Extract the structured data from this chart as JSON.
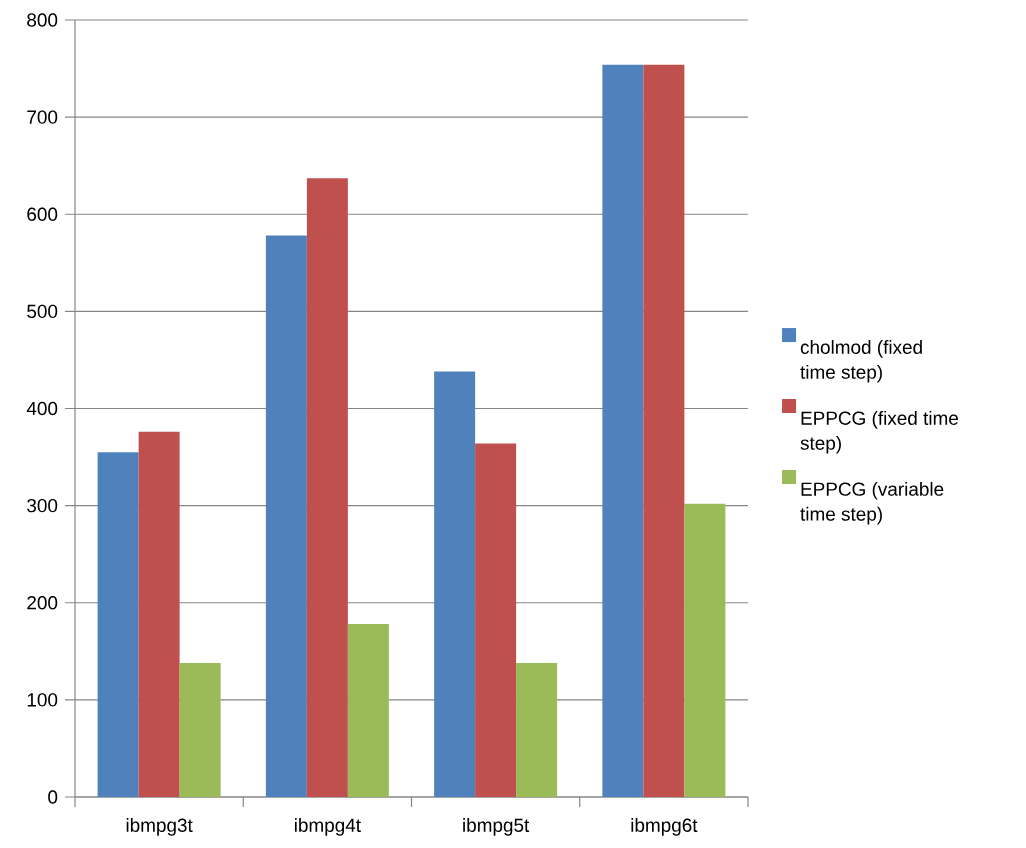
{
  "chart_data": {
    "type": "bar",
    "categories": [
      "ibmpg3t",
      "ibmpg4t",
      "ibmpg5t",
      "ibmpg6t"
    ],
    "series": [
      {
        "name": "cholmod (fixed time step)",
        "color": "#4f81bd",
        "values": [
          355,
          578,
          438,
          754
        ]
      },
      {
        "name": "EPPCG (fixed time step)",
        "color": "#c0504d",
        "values": [
          376,
          637,
          364,
          754
        ]
      },
      {
        "name": "EPPCG (variable time step)",
        "color": "#9bbb59",
        "values": [
          138,
          178,
          138,
          302
        ]
      }
    ],
    "ylim": [
      0,
      800
    ],
    "yticks": [
      0,
      100,
      200,
      300,
      400,
      500,
      600,
      700,
      800
    ],
    "grid": "y",
    "legend": "right"
  }
}
